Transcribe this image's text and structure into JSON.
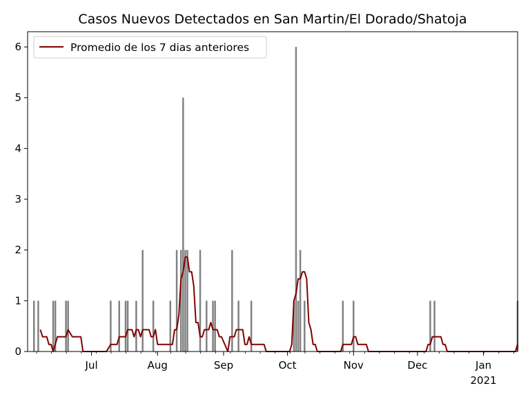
{
  "chart_data": {
    "type": "bar",
    "title": "Casos Nuevos Detectados en San Martin/El Dorado/Shatoja",
    "xlabel": "",
    "ylabel": "",
    "x_range": [
      "2020-06-01",
      "2021-01-17"
    ],
    "ylim": [
      0,
      6.3
    ],
    "yticks": [
      0,
      1,
      2,
      3,
      4,
      5,
      6
    ],
    "xticks": [
      {
        "date": "2020-07-01",
        "label": "Jul",
        "sublabel": ""
      },
      {
        "date": "2020-08-01",
        "label": "Aug",
        "sublabel": ""
      },
      {
        "date": "2020-09-01",
        "label": "Sep",
        "sublabel": ""
      },
      {
        "date": "2020-10-01",
        "label": "Oct",
        "sublabel": ""
      },
      {
        "date": "2020-11-01",
        "label": "Nov",
        "sublabel": ""
      },
      {
        "date": "2020-12-01",
        "label": "Dec",
        "sublabel": ""
      },
      {
        "date": "2021-01-01",
        "label": "Jan",
        "sublabel": "2021"
      }
    ],
    "grid": false,
    "legend_position": "top-left",
    "legend": [
      "Promedio de los 7 dias anteriores"
    ],
    "series": [
      {
        "type": "bar",
        "color": "#808080",
        "points": [
          [
            "2020-06-04",
            1
          ],
          [
            "2020-06-06",
            1
          ],
          [
            "2020-06-13",
            1
          ],
          [
            "2020-06-14",
            1
          ],
          [
            "2020-06-19",
            1
          ],
          [
            "2020-06-20",
            1
          ],
          [
            "2020-07-10",
            1
          ],
          [
            "2020-07-14",
            1
          ],
          [
            "2020-07-17",
            1
          ],
          [
            "2020-07-18",
            1
          ],
          [
            "2020-07-22",
            1
          ],
          [
            "2020-07-25",
            2
          ],
          [
            "2020-07-30",
            1
          ],
          [
            "2020-08-07",
            1
          ],
          [
            "2020-08-10",
            2
          ],
          [
            "2020-08-12",
            2
          ],
          [
            "2020-08-13",
            5
          ],
          [
            "2020-08-14",
            2
          ],
          [
            "2020-08-15",
            2
          ],
          [
            "2020-08-21",
            2
          ],
          [
            "2020-08-24",
            1
          ],
          [
            "2020-08-27",
            1
          ],
          [
            "2020-08-28",
            1
          ],
          [
            "2020-09-05",
            2
          ],
          [
            "2020-09-08",
            1
          ],
          [
            "2020-09-14",
            1
          ],
          [
            "2020-10-04",
            1
          ],
          [
            "2020-10-05",
            6
          ],
          [
            "2020-10-06",
            1
          ],
          [
            "2020-10-07",
            2
          ],
          [
            "2020-10-09",
            1
          ],
          [
            "2020-10-27",
            1
          ],
          [
            "2020-11-01",
            1
          ],
          [
            "2020-12-07",
            1
          ],
          [
            "2020-12-09",
            1
          ],
          [
            "2021-01-17",
            1
          ]
        ]
      },
      {
        "type": "line",
        "name": "Promedio de los 7 dias anteriores",
        "color": "#800000",
        "points": [
          [
            "2020-06-07",
            0.43
          ],
          [
            "2020-06-08",
            0.29
          ],
          [
            "2020-06-10",
            0.29
          ],
          [
            "2020-06-11",
            0.14
          ],
          [
            "2020-06-12",
            0.14
          ],
          [
            "2020-06-13",
            0.0
          ],
          [
            "2020-06-15",
            0.29
          ],
          [
            "2020-06-19",
            0.29
          ],
          [
            "2020-06-20",
            0.43
          ],
          [
            "2020-06-22",
            0.29
          ],
          [
            "2020-06-26",
            0.29
          ],
          [
            "2020-06-27",
            0.0
          ],
          [
            "2020-07-08",
            0.0
          ],
          [
            "2020-07-10",
            0.14
          ],
          [
            "2020-07-13",
            0.14
          ],
          [
            "2020-07-14",
            0.29
          ],
          [
            "2020-07-17",
            0.29
          ],
          [
            "2020-07-18",
            0.43
          ],
          [
            "2020-07-20",
            0.43
          ],
          [
            "2020-07-21",
            0.29
          ],
          [
            "2020-07-22",
            0.43
          ],
          [
            "2020-07-23",
            0.43
          ],
          [
            "2020-07-24",
            0.29
          ],
          [
            "2020-07-25",
            0.43
          ],
          [
            "2020-07-28",
            0.43
          ],
          [
            "2020-07-29",
            0.29
          ],
          [
            "2020-07-30",
            0.29
          ],
          [
            "2020-07-31",
            0.43
          ],
          [
            "2020-08-01",
            0.14
          ],
          [
            "2020-08-08",
            0.14
          ],
          [
            "2020-08-09",
            0.43
          ],
          [
            "2020-08-10",
            0.43
          ],
          [
            "2020-08-11",
            0.71
          ],
          [
            "2020-08-12",
            1.43
          ],
          [
            "2020-08-13",
            1.57
          ],
          [
            "2020-08-14",
            1.86
          ],
          [
            "2020-08-15",
            1.86
          ],
          [
            "2020-08-16",
            1.57
          ],
          [
            "2020-08-17",
            1.57
          ],
          [
            "2020-08-18",
            1.29
          ],
          [
            "2020-08-19",
            0.57
          ],
          [
            "2020-08-20",
            0.57
          ],
          [
            "2020-08-21",
            0.29
          ],
          [
            "2020-08-22",
            0.29
          ],
          [
            "2020-08-23",
            0.43
          ],
          [
            "2020-08-25",
            0.43
          ],
          [
            "2020-08-26",
            0.57
          ],
          [
            "2020-08-27",
            0.43
          ],
          [
            "2020-08-29",
            0.43
          ],
          [
            "2020-08-30",
            0.29
          ],
          [
            "2020-08-31",
            0.29
          ],
          [
            "2020-09-03",
            0.0
          ],
          [
            "2020-09-04",
            0.29
          ],
          [
            "2020-09-06",
            0.29
          ],
          [
            "2020-09-07",
            0.43
          ],
          [
            "2020-09-10",
            0.43
          ],
          [
            "2020-09-11",
            0.14
          ],
          [
            "2020-09-12",
            0.14
          ],
          [
            "2020-09-13",
            0.29
          ],
          [
            "2020-09-14",
            0.14
          ],
          [
            "2020-09-20",
            0.14
          ],
          [
            "2020-09-21",
            0.0
          ],
          [
            "2020-10-02",
            0.0
          ],
          [
            "2020-10-03",
            0.14
          ],
          [
            "2020-10-04",
            1.0
          ],
          [
            "2020-10-05",
            1.14
          ],
          [
            "2020-10-06",
            1.43
          ],
          [
            "2020-10-07",
            1.43
          ],
          [
            "2020-10-08",
            1.57
          ],
          [
            "2020-10-09",
            1.57
          ],
          [
            "2020-10-10",
            1.43
          ],
          [
            "2020-10-11",
            0.57
          ],
          [
            "2020-10-12",
            0.43
          ],
          [
            "2020-10-13",
            0.14
          ],
          [
            "2020-10-14",
            0.14
          ],
          [
            "2020-10-15",
            0.0
          ],
          [
            "2020-10-26",
            0.0
          ],
          [
            "2020-10-27",
            0.14
          ],
          [
            "2020-10-31",
            0.14
          ],
          [
            "2020-11-01",
            0.29
          ],
          [
            "2020-11-02",
            0.29
          ],
          [
            "2020-11-03",
            0.14
          ],
          [
            "2020-11-07",
            0.14
          ],
          [
            "2020-11-08",
            0.0
          ],
          [
            "2020-12-05",
            0.0
          ],
          [
            "2020-12-06",
            0.14
          ],
          [
            "2020-12-07",
            0.14
          ],
          [
            "2020-12-08",
            0.29
          ],
          [
            "2020-12-12",
            0.29
          ],
          [
            "2020-12-13",
            0.14
          ],
          [
            "2020-12-14",
            0.14
          ],
          [
            "2020-12-15",
            0.0
          ],
          [
            "2021-01-16",
            0.0
          ],
          [
            "2021-01-17",
            0.14
          ]
        ]
      }
    ]
  }
}
